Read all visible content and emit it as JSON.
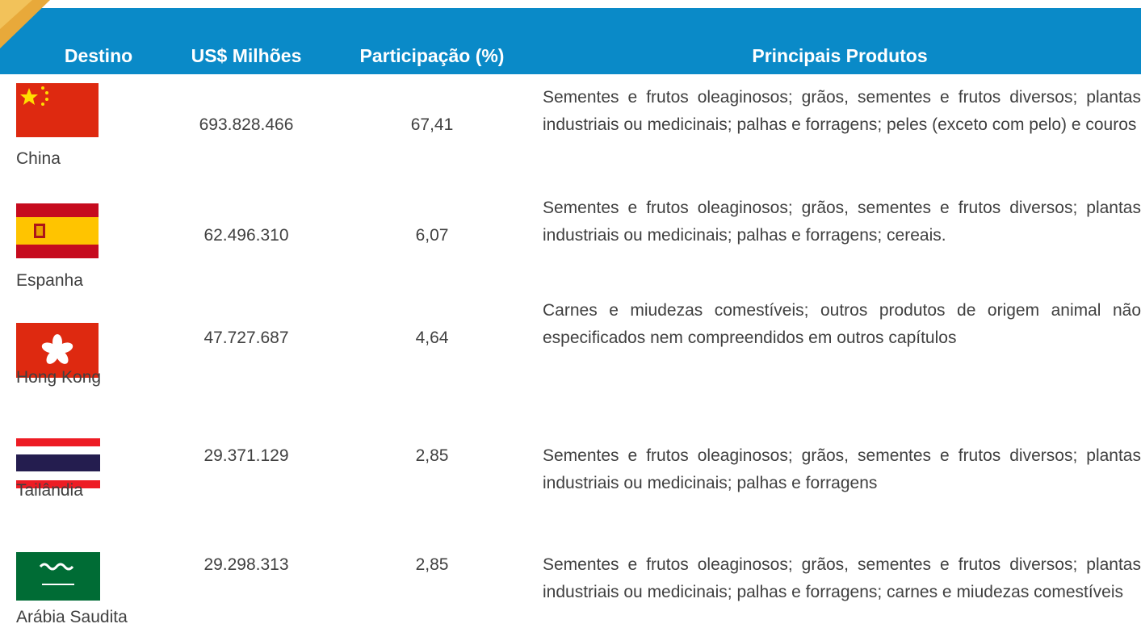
{
  "table": {
    "header": [
      "Destino",
      "US$ Milhões",
      "Participação (%)",
      "Principais Produtos"
    ],
    "rows": [
      [
        "China",
        "693.828.466",
        "67,41",
        "Sementes e frutos oleaginosos; grãos, sementes e frutos diversos; plantas industriais ou medicinais; palhas e forragens; peles (exceto com pelo) e couros"
      ],
      [
        "Espanha",
        "62.496.310",
        "6,07",
        "Sementes e frutos oleaginosos; grãos, sementes e frutos diversos; plantas industriais ou medicinais; palhas e forragens; cereais."
      ],
      [
        "Hong Kong",
        "47.727.687",
        "4,64",
        "Carnes e miudezas comestíveis; outros produtos de origem animal não especificados nem compreendidos em outros capítulos"
      ],
      [
        "Tailândia",
        "29.371.129",
        "2,85",
        "Sementes e frutos oleaginosos; grãos, sementes e frutos diversos; plantas industriais ou medicinais; palhas e forragens"
      ],
      [
        "Arábia Saudita",
        "29.298.313",
        "2,85",
        "Sementes e frutos oleaginosos; grãos, sementes e frutos diversos; plantas industriais ou medicinais; palhas e forragens; carnes e miudezas comestíveis"
      ]
    ]
  }
}
